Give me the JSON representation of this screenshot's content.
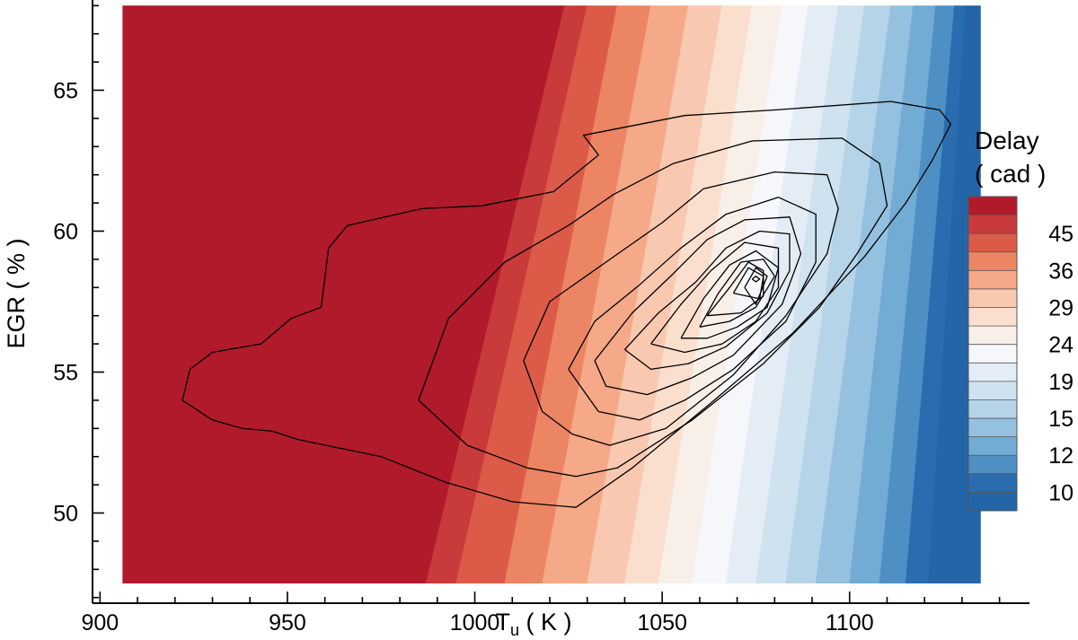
{
  "chart_data": {
    "type": "contour",
    "xlabel": "T",
    "xlabel_subscript": "u",
    "xlabel_unit": "( K )",
    "ylabel": "EGR ( % )",
    "xlim": [
      898,
      1148
    ],
    "ylim": [
      46.8,
      68.2
    ],
    "data_domain_x": [
      906,
      1135
    ],
    "data_domain_y": [
      47.5,
      68
    ],
    "x_ticks": [
      900,
      950,
      1000,
      1050,
      1100
    ],
    "x_tick_labels": [
      "900",
      "950",
      "1000",
      "1050",
      "1100"
    ],
    "y_ticks": [
      50,
      55,
      60,
      65
    ],
    "y_tick_labels": [
      "50",
      "55",
      "60",
      "65"
    ],
    "legend_position": "right",
    "colorbar": {
      "title_line1": "Delay",
      "title_line2": "( cad )",
      "labels": [
        "45",
        "36",
        "29",
        "24",
        "19",
        "15",
        "12",
        "10"
      ],
      "colors": [
        "#b11a2b",
        "#c93a3a",
        "#dc5b48",
        "#ec8563",
        "#f5a988",
        "#f9c8b0",
        "#fbdfce",
        "#f8efe8",
        "#f5f7fa",
        "#e4edf5",
        "#cfe2ef",
        "#b5d4e8",
        "#94c1df",
        "#72abd3",
        "#4e90c4",
        "#2a6cb0",
        "#2465a8"
      ]
    },
    "delay_field": {
      "description_levels_top_to_bottom": "17 color bands from high delay (red) to low delay (blue)",
      "band_boundaries_at_y_47_5": [
        987,
        995,
        1008,
        1018,
        1030,
        1040,
        1049,
        1058,
        1067,
        1075,
        1083,
        1091,
        1100,
        1108,
        1115,
        1121
      ],
      "band_boundaries_at_y_68": [
        1024,
        1030,
        1038,
        1047,
        1057,
        1066,
        1074,
        1082,
        1089,
        1097,
        1104,
        1111,
        1117,
        1123,
        1128,
        1131
      ]
    },
    "contour_lines": [
      [
        [
          1033,
          62.7
        ],
        [
          1029,
          63.4
        ],
        [
          1056,
          64.1
        ],
        [
          1080,
          64.3
        ],
        [
          1111,
          64.6
        ],
        [
          1124,
          64.3
        ],
        [
          1127,
          63.8
        ],
        [
          1122,
          62.5
        ],
        [
          1115,
          61.0
        ],
        [
          1104,
          59.1
        ],
        [
          1085,
          56.4
        ],
        [
          1063,
          53.9
        ],
        [
          1042,
          51.6
        ],
        [
          1027,
          50.2
        ],
        [
          1010,
          50.4
        ],
        [
          992,
          51.1
        ],
        [
          975,
          52.0
        ],
        [
          953,
          52.6
        ],
        [
          946,
          52.9
        ],
        [
          938,
          53.0
        ],
        [
          930,
          53.3
        ],
        [
          922,
          54.0
        ],
        [
          924,
          55.1
        ],
        [
          930,
          55.7
        ],
        [
          943,
          56.0
        ],
        [
          951,
          56.9
        ],
        [
          959,
          57.3
        ],
        [
          961,
          59.4
        ],
        [
          966,
          60.2
        ],
        [
          986,
          60.8
        ],
        [
          1002,
          60.9
        ],
        [
          1021,
          61.4
        ],
        [
          1033,
          62.7
        ]
      ],
      [
        [
          985,
          54.0
        ],
        [
          993,
          56.9
        ],
        [
          1008,
          58.9
        ],
        [
          1025,
          60.2
        ],
        [
          1037,
          61.3
        ],
        [
          1053,
          62.4
        ],
        [
          1074,
          63.2
        ],
        [
          1098,
          63.3
        ],
        [
          1108,
          62.4
        ],
        [
          1110,
          60.9
        ],
        [
          1102,
          59.2
        ],
        [
          1092,
          57.3
        ],
        [
          1077,
          55.3
        ],
        [
          1058,
          53.3
        ],
        [
          1038,
          51.6
        ],
        [
          1027,
          51.3
        ],
        [
          1014,
          51.6
        ],
        [
          998,
          52.4
        ],
        [
          985,
          54.0
        ]
      ],
      [
        [
          1013,
          55.4
        ],
        [
          1020,
          57.5
        ],
        [
          1035,
          58.9
        ],
        [
          1050,
          60.3
        ],
        [
          1061,
          61.5
        ],
        [
          1080,
          62.1
        ],
        [
          1094,
          62.0
        ],
        [
          1097,
          60.8
        ],
        [
          1094,
          59.2
        ],
        [
          1083,
          57.0
        ],
        [
          1069,
          54.9
        ],
        [
          1051,
          53.0
        ],
        [
          1036,
          52.4
        ],
        [
          1026,
          52.8
        ],
        [
          1018,
          53.6
        ],
        [
          1013,
          55.4
        ]
      ],
      [
        [
          1025,
          55.1
        ],
        [
          1032,
          56.8
        ],
        [
          1044,
          58.1
        ],
        [
          1055,
          59.4
        ],
        [
          1067,
          60.6
        ],
        [
          1081,
          61.2
        ],
        [
          1091,
          60.6
        ],
        [
          1091,
          58.9
        ],
        [
          1083,
          56.8
        ],
        [
          1069,
          55.1
        ],
        [
          1056,
          54.0
        ],
        [
          1044,
          53.3
        ],
        [
          1033,
          53.6
        ],
        [
          1025,
          55.1
        ]
      ],
      [
        [
          1032,
          55.4
        ],
        [
          1042,
          57.1
        ],
        [
          1053,
          58.5
        ],
        [
          1062,
          59.7
        ],
        [
          1072,
          60.4
        ],
        [
          1084,
          60.5
        ],
        [
          1087,
          59.2
        ],
        [
          1082,
          57.4
        ],
        [
          1069,
          55.6
        ],
        [
          1058,
          54.8
        ],
        [
          1046,
          54.2
        ],
        [
          1035,
          54.5
        ],
        [
          1032,
          55.4
        ]
      ],
      [
        [
          1040,
          55.8
        ],
        [
          1049,
          57.1
        ],
        [
          1059,
          58.2
        ],
        [
          1067,
          59.4
        ],
        [
          1076,
          60.0
        ],
        [
          1084,
          59.9
        ],
        [
          1084,
          58.6
        ],
        [
          1078,
          57.1
        ],
        [
          1067,
          55.9
        ],
        [
          1057,
          55.3
        ],
        [
          1047,
          55.1
        ],
        [
          1040,
          55.8
        ]
      ],
      [
        [
          1047,
          56.0
        ],
        [
          1055,
          57.4
        ],
        [
          1063,
          58.6
        ],
        [
          1072,
          59.6
        ],
        [
          1081,
          59.4
        ],
        [
          1081,
          58.0
        ],
        [
          1075,
          56.8
        ],
        [
          1066,
          56.0
        ],
        [
          1056,
          55.7
        ],
        [
          1047,
          56.0
        ]
      ],
      [
        [
          1055,
          56.2
        ],
        [
          1061,
          57.6
        ],
        [
          1068,
          58.8
        ],
        [
          1075,
          59.3
        ],
        [
          1081,
          58.7
        ],
        [
          1078,
          57.3
        ],
        [
          1070,
          56.6
        ],
        [
          1062,
          56.2
        ],
        [
          1055,
          56.2
        ]
      ],
      [
        [
          1060,
          56.6
        ],
        [
          1065,
          57.8
        ],
        [
          1071,
          58.9
        ],
        [
          1077,
          59.0
        ],
        [
          1080,
          58.4
        ],
        [
          1075,
          57.3
        ],
        [
          1068,
          56.8
        ],
        [
          1060,
          56.6
        ]
      ],
      [
        [
          1062,
          57.0
        ],
        [
          1068,
          58.0
        ],
        [
          1073,
          58.9
        ],
        [
          1077,
          58.6
        ],
        [
          1077,
          57.7
        ],
        [
          1071,
          57.1
        ],
        [
          1062,
          57.0
        ]
      ],
      [
        [
          1069,
          57.8
        ],
        [
          1073,
          58.7
        ],
        [
          1077,
          58.4
        ],
        [
          1076,
          57.6
        ],
        [
          1069,
          57.8
        ]
      ],
      [
        [
          1072,
          58.0
        ],
        [
          1075,
          58.7
        ],
        [
          1078,
          58.4
        ],
        [
          1075,
          57.4
        ],
        [
          1072,
          58.0
        ]
      ],
      [
        [
          1074,
          58.3
        ],
        [
          1075,
          58.4
        ],
        [
          1076,
          58.3
        ],
        [
          1075,
          58.2
        ],
        [
          1074,
          58.3
        ]
      ]
    ]
  }
}
